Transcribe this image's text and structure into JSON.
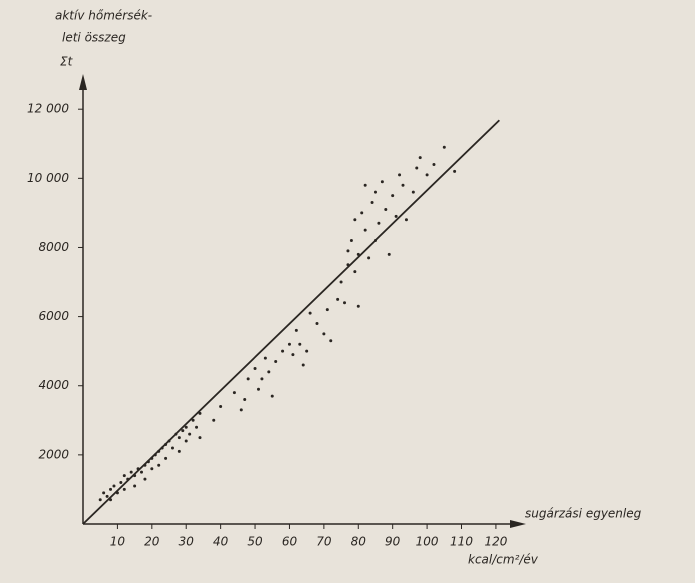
{
  "chart_data": {
    "type": "scatter",
    "y_label": [
      "aktív hőmérsék-",
      "leti összeg",
      "Σt"
    ],
    "x_label": "sugárzási egyenleg",
    "x_unit": "kcal/cm²/év",
    "xlim": [
      0,
      127
    ],
    "ylim": [
      0,
      12700
    ],
    "xticks": [
      10,
      20,
      30,
      40,
      50,
      60,
      70,
      80,
      90,
      100,
      110,
      120
    ],
    "yticks": [
      2000,
      4000,
      6000,
      8000,
      {
        "value": 10000,
        "label": "10 000"
      },
      {
        "value": 12000,
        "label": "12 000"
      }
    ],
    "color": "#2a2622",
    "x": [
      5,
      6,
      7,
      8,
      9,
      8,
      10,
      11,
      12,
      12,
      13,
      14,
      15,
      15,
      16,
      17,
      18,
      18,
      19,
      20,
      20,
      21,
      22,
      22,
      23,
      24,
      24,
      25,
      26,
      27,
      28,
      28,
      29,
      30,
      30,
      31,
      32,
      33,
      34,
      34,
      38,
      40,
      44,
      46,
      47,
      48,
      50,
      51,
      52,
      53,
      54,
      55,
      56,
      58,
      60,
      61,
      62,
      63,
      64,
      65,
      66,
      68,
      70,
      71,
      72,
      74,
      75,
      76,
      77,
      77,
      78,
      79,
      79,
      80,
      80,
      81,
      82,
      82,
      83,
      84,
      85,
      85,
      86,
      87,
      88,
      89,
      90,
      91,
      92,
      93,
      94,
      96,
      97,
      98,
      100,
      102,
      105,
      108
    ],
    "values": [
      700,
      900,
      800,
      1000,
      1100,
      700,
      900,
      1200,
      1400,
      1000,
      1300,
      1500,
      1400,
      1100,
      1600,
      1500,
      1700,
      1300,
      1800,
      1900,
      1600,
      2000,
      2100,
      1700,
      2200,
      2300,
      1900,
      2400,
      2200,
      2600,
      2500,
      2100,
      2700,
      2800,
      2400,
      2600,
      3000,
      2800,
      2500,
      3200,
      3000,
      3400,
      3800,
      3300,
      3600,
      4200,
      4500,
      3900,
      4200,
      4800,
      4400,
      3700,
      4700,
      5000,
      5200,
      4900,
      5600,
      5200,
      4600,
      5000,
      6100,
      5800,
      5500,
      6200,
      5300,
      6500,
      7000,
      6400,
      7500,
      7900,
      8200,
      7300,
      8800,
      6300,
      7800,
      9000,
      8500,
      9800,
      7700,
      9300,
      9600,
      8200,
      8700,
      9900,
      9100,
      7800,
      9500,
      8900,
      10100,
      9800,
      8800,
      9600,
      10300,
      10600,
      10100,
      10400,
      10900,
      10200
    ],
    "trend_line": {
      "x": [
        0,
        121
      ],
      "y": [
        0,
        11680
      ]
    }
  }
}
